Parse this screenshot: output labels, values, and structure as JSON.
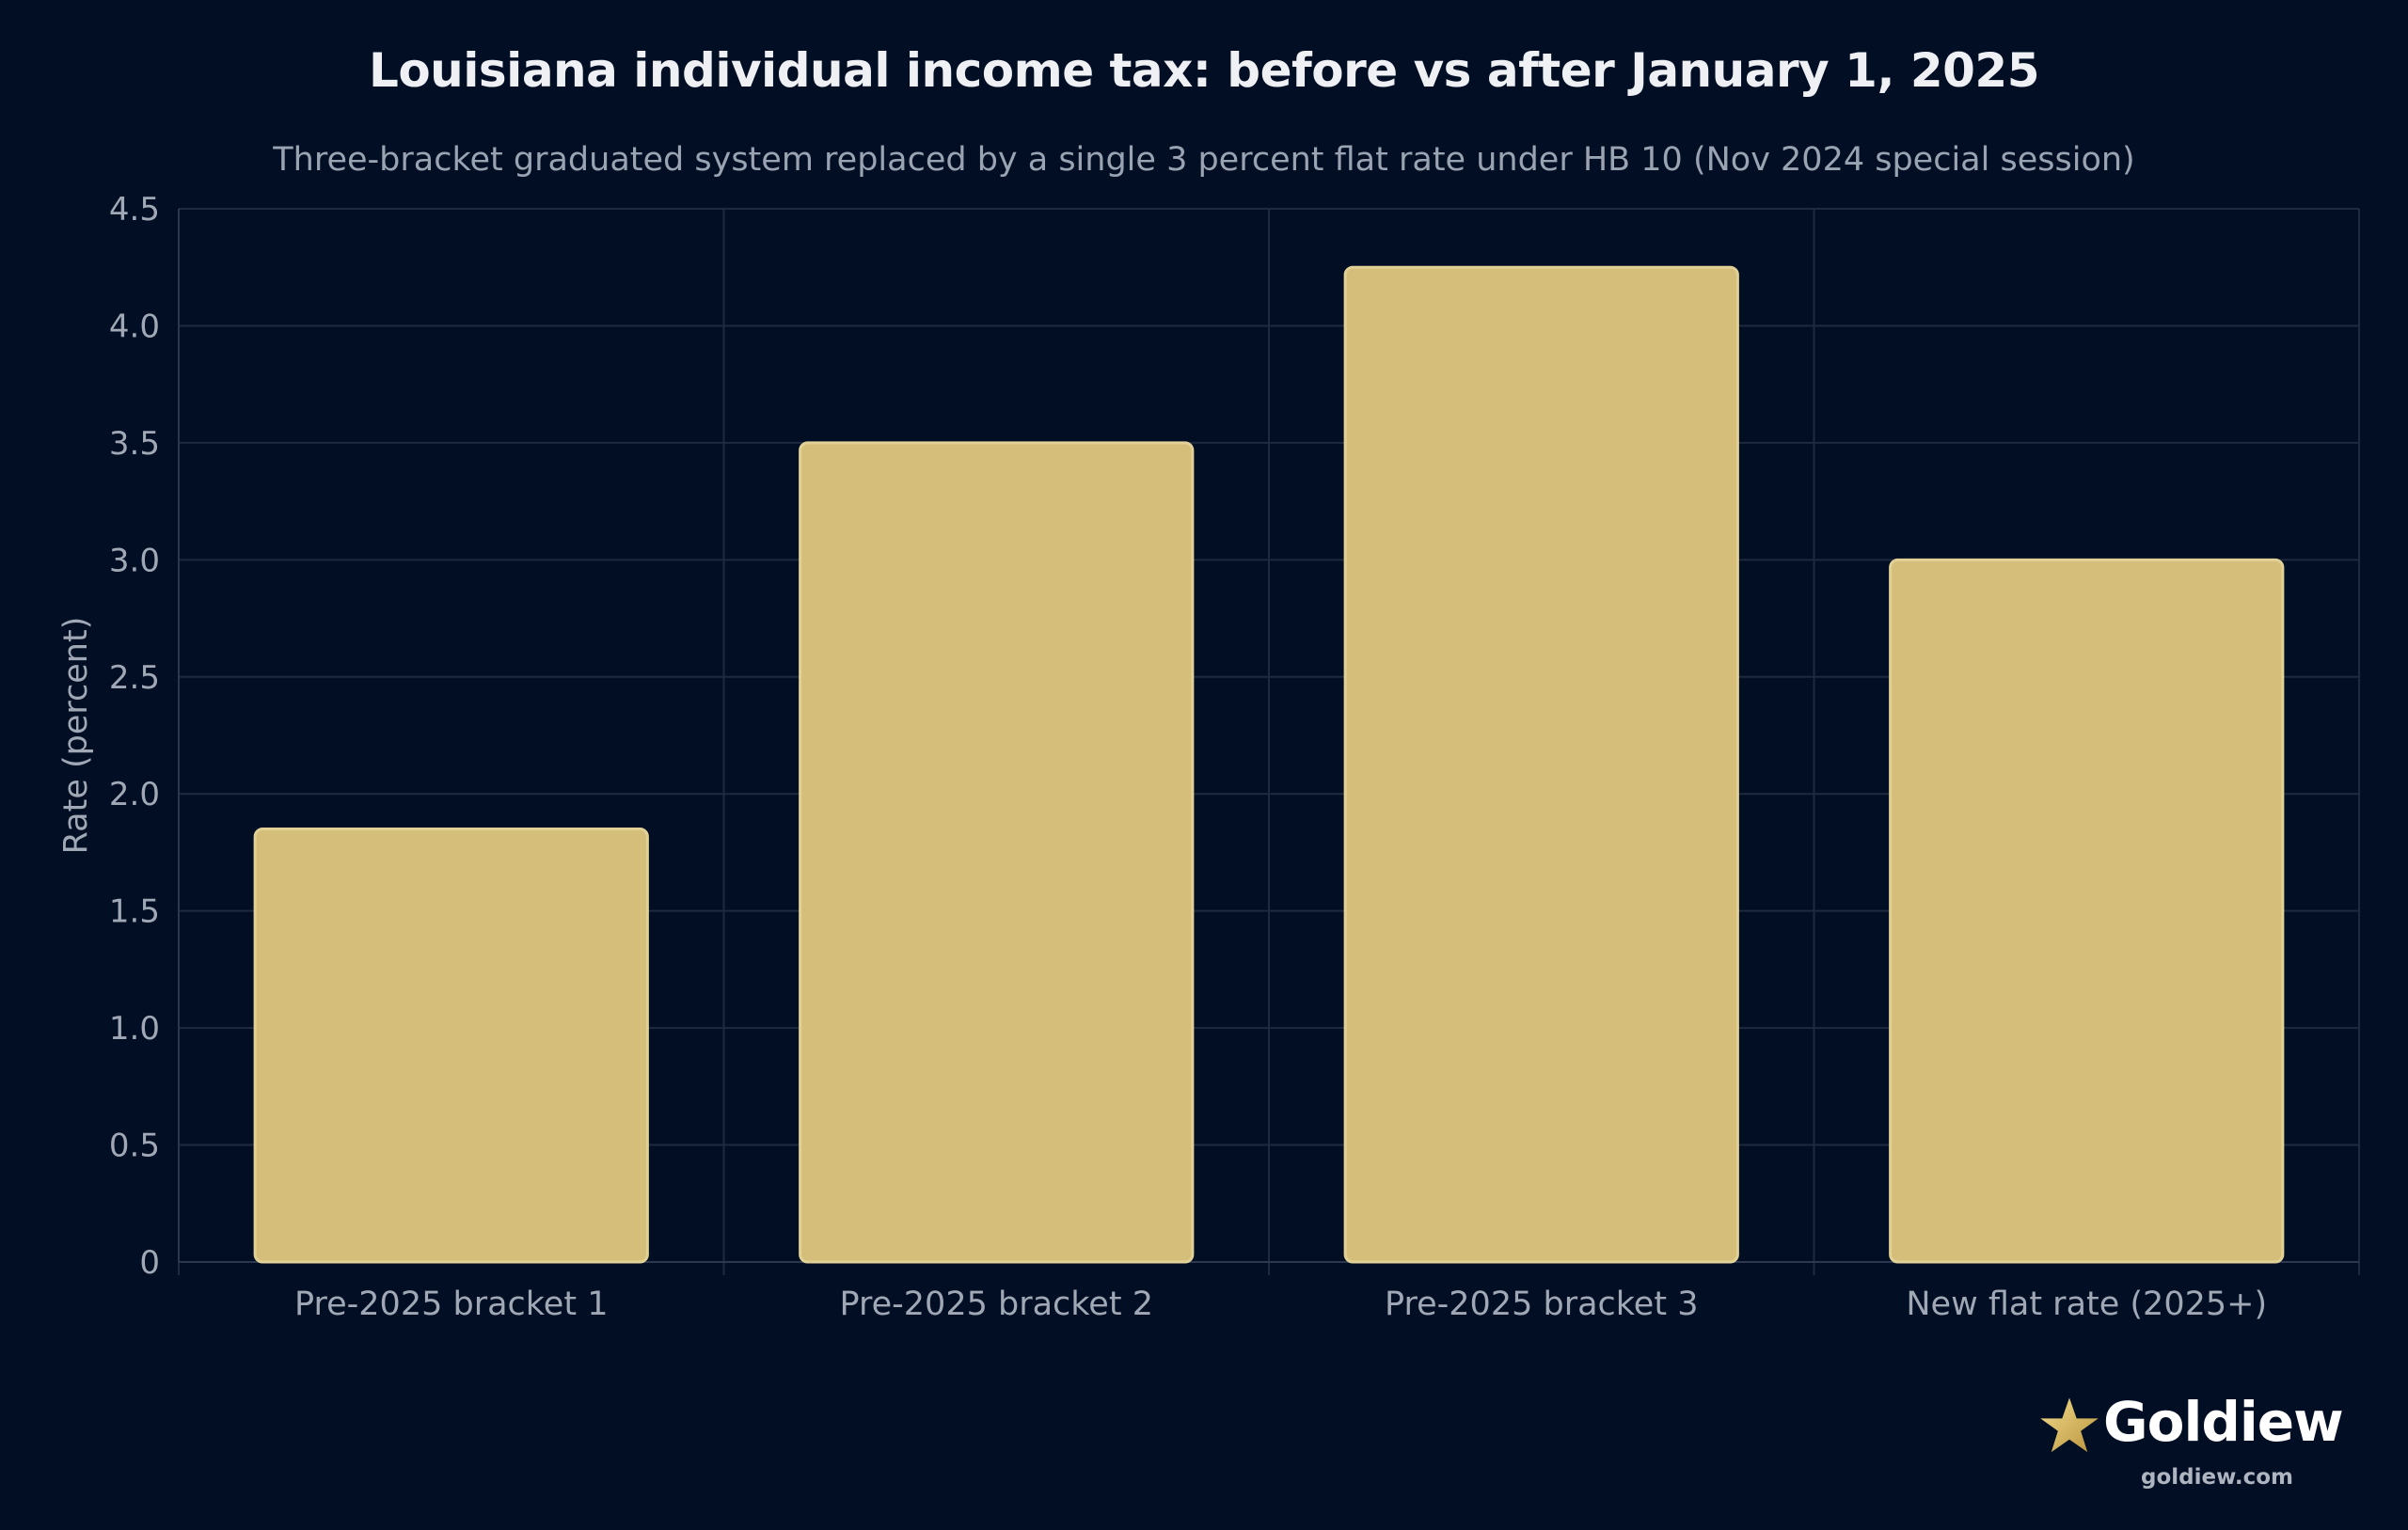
{
  "chart_data": {
    "type": "bar",
    "title": "Louisiana individual income tax: before vs after January 1, 2025",
    "subtitle": "Three-bracket graduated system replaced by a single 3 percent flat rate under HB 10 (Nov 2024 special session)",
    "xlabel": "",
    "ylabel": "Rate (percent)",
    "categories": [
      "Pre-2025 bracket 1",
      "Pre-2025 bracket 2",
      "Pre-2025 bracket 3",
      "New flat rate (2025+)"
    ],
    "values": [
      1.85,
      3.5,
      4.25,
      3.0
    ],
    "ylim": [
      0,
      4.5
    ],
    "yticks": [
      "0",
      "0.5",
      "1.0",
      "1.5",
      "2.0",
      "2.5",
      "3.0",
      "3.5",
      "4.0",
      "4.5"
    ],
    "grid": true,
    "legend": "none",
    "colors": {
      "background": "#020e24",
      "bar": "#d4be79",
      "bar_edge": "#e2d196",
      "grid": "#1f2a3f",
      "axis": "#2c3850",
      "tick_text": "#a0a8b6"
    }
  },
  "logo": {
    "brand": "Goldiew",
    "url": "goldiew.com"
  }
}
